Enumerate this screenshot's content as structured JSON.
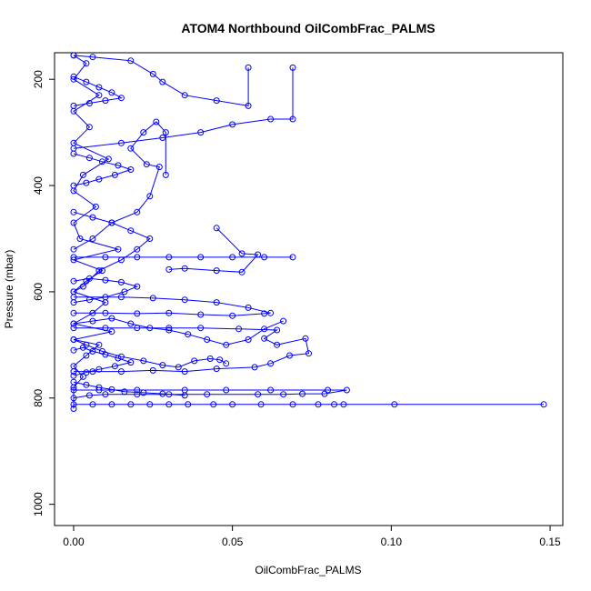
{
  "chart_data": {
    "type": "line",
    "title": "ATOM4 Northbound OilCombFrac_PALMS",
    "xlabel": "OilCombFrac_PALMS",
    "ylabel": "Pressure (mbar)",
    "xlim": [
      -0.006,
      0.154
    ],
    "ylim": [
      1040,
      150
    ],
    "y_reversed": true,
    "x_ticks": [
      0.0,
      0.05,
      0.1,
      0.15
    ],
    "x_tick_labels": [
      "0.00",
      "0.05",
      "0.10",
      "0.15"
    ],
    "y_ticks": [
      200,
      400,
      600,
      800,
      1000
    ],
    "y_tick_labels": [
      "200",
      "400",
      "600",
      "800",
      "1000"
    ],
    "grid": false,
    "color": "#0000ff",
    "marker": "open-circle",
    "series": [
      {
        "values": [
          [
            0.0,
            820
          ],
          [
            0.0,
            780
          ],
          [
            0.003,
            760
          ],
          [
            0.0,
            740
          ],
          [
            0.004,
            720
          ],
          [
            0.008,
            700
          ],
          [
            0.0,
            690
          ],
          [
            0.012,
            675
          ],
          [
            0.0,
            660
          ],
          [
            0.006,
            640
          ],
          [
            0.01,
            620
          ],
          [
            0.0,
            600
          ],
          [
            0.004,
            580
          ],
          [
            0.009,
            560
          ],
          [
            0.0,
            540
          ],
          [
            0.014,
            520
          ],
          [
            0.002,
            500
          ],
          [
            0.0,
            470
          ],
          [
            0.007,
            440
          ],
          [
            0.0,
            410
          ],
          [
            0.003,
            380
          ],
          [
            0.011,
            350
          ],
          [
            0.0,
            320
          ],
          [
            0.005,
            290
          ],
          [
            0.0,
            260
          ],
          [
            0.008,
            230
          ],
          [
            0.0,
            200
          ],
          [
            0.004,
            170
          ],
          [
            0.0,
            155
          ]
        ]
      },
      {
        "values": [
          [
            0.0,
            812
          ],
          [
            0.006,
            812
          ],
          [
            0.012,
            812
          ],
          [
            0.018,
            812
          ],
          [
            0.024,
            812
          ],
          [
            0.03,
            812
          ],
          [
            0.036,
            812
          ],
          [
            0.044,
            812
          ],
          [
            0.05,
            812
          ],
          [
            0.059,
            812
          ],
          [
            0.069,
            812
          ],
          [
            0.077,
            812
          ],
          [
            0.082,
            812
          ],
          [
            0.085,
            812
          ],
          [
            0.101,
            812
          ],
          [
            0.148,
            812
          ]
        ]
      },
      {
        "values": [
          [
            0.0,
            800
          ],
          [
            0.005,
            795
          ],
          [
            0.01,
            793
          ],
          [
            0.02,
            793
          ],
          [
            0.03,
            793
          ],
          [
            0.042,
            793
          ],
          [
            0.058,
            793
          ],
          [
            0.066,
            793
          ],
          [
            0.072,
            792
          ],
          [
            0.079,
            792
          ],
          [
            0.086,
            785
          ],
          [
            0.08,
            785
          ],
          [
            0.062,
            785
          ],
          [
            0.048,
            785
          ],
          [
            0.035,
            785
          ],
          [
            0.02,
            785
          ],
          [
            0.008,
            785
          ],
          [
            0.0,
            785
          ]
        ]
      },
      {
        "values": [
          [
            0.0,
            535
          ],
          [
            0.01,
            535
          ],
          [
            0.02,
            535
          ],
          [
            0.03,
            535
          ],
          [
            0.04,
            535
          ],
          [
            0.05,
            535
          ],
          [
            0.06,
            535
          ],
          [
            0.069,
            535
          ]
        ]
      },
      {
        "values": [
          [
            0.0,
            750
          ],
          [
            0.006,
            750
          ],
          [
            0.015,
            750
          ],
          [
            0.025,
            748
          ],
          [
            0.035,
            750
          ],
          [
            0.045,
            745
          ],
          [
            0.057,
            742
          ],
          [
            0.062,
            735
          ],
          [
            0.068,
            720
          ],
          [
            0.074,
            716
          ],
          [
            0.073,
            688
          ],
          [
            0.064,
            700
          ],
          [
            0.06,
            688
          ],
          [
            0.064,
            672
          ],
          [
            0.052,
            670
          ],
          [
            0.04,
            668
          ],
          [
            0.03,
            668
          ],
          [
            0.02,
            668
          ],
          [
            0.01,
            668
          ],
          [
            0.0,
            668
          ]
        ]
      },
      {
        "values": [
          [
            0.0,
            640
          ],
          [
            0.01,
            640
          ],
          [
            0.02,
            641
          ],
          [
            0.03,
            640
          ],
          [
            0.04,
            643
          ],
          [
            0.05,
            645
          ],
          [
            0.06,
            641
          ],
          [
            0.062,
            640
          ],
          [
            0.055,
            630
          ],
          [
            0.045,
            620
          ],
          [
            0.035,
            615
          ],
          [
            0.025,
            612
          ],
          [
            0.015,
            610
          ],
          [
            0.0,
            610
          ]
        ]
      },
      {
        "values": [
          [
            0.045,
            480
          ],
          [
            0.053,
            528
          ],
          [
            0.058,
            530
          ],
          [
            0.053,
            563
          ],
          [
            0.045,
            560
          ],
          [
            0.035,
            556
          ],
          [
            0.03,
            558
          ]
        ]
      },
      {
        "values": [
          [
            0.069,
            178
          ],
          [
            0.069,
            275
          ],
          [
            0.062,
            275
          ],
          [
            0.05,
            285
          ],
          [
            0.04,
            300
          ],
          [
            0.028,
            310
          ],
          [
            0.015,
            320
          ],
          [
            0.0,
            330
          ]
        ]
      },
      {
        "values": [
          [
            0.055,
            178
          ],
          [
            0.055,
            250
          ],
          [
            0.045,
            240
          ],
          [
            0.035,
            230
          ],
          [
            0.028,
            205
          ],
          [
            0.025,
            190
          ],
          [
            0.018,
            165
          ],
          [
            0.006,
            158
          ],
          [
            0.0,
            155
          ]
        ]
      },
      {
        "values": [
          [
            0.029,
            380
          ],
          [
            0.029,
            300
          ],
          [
            0.026,
            280
          ],
          [
            0.022,
            300
          ],
          [
            0.018,
            330
          ],
          [
            0.023,
            360
          ],
          [
            0.027,
            365
          ],
          [
            0.024,
            420
          ],
          [
            0.02,
            450
          ],
          [
            0.012,
            470
          ],
          [
            0.006,
            500
          ],
          [
            0.0,
            520
          ]
        ]
      },
      {
        "values": [
          [
            0.0,
            450
          ],
          [
            0.006,
            460
          ],
          [
            0.012,
            470
          ],
          [
            0.018,
            485
          ],
          [
            0.024,
            500
          ],
          [
            0.02,
            520
          ],
          [
            0.015,
            540
          ],
          [
            0.008,
            560
          ],
          [
            0.003,
            590
          ],
          [
            0.0,
            600
          ]
        ]
      },
      {
        "values": [
          [
            0.0,
            690
          ],
          [
            0.004,
            700
          ],
          [
            0.009,
            712
          ],
          [
            0.015,
            722
          ],
          [
            0.022,
            730
          ],
          [
            0.028,
            738
          ],
          [
            0.033,
            742
          ],
          [
            0.038,
            730
          ],
          [
            0.043,
            726
          ],
          [
            0.046,
            728
          ],
          [
            0.048,
            735
          ]
        ]
      },
      {
        "values": [
          [
            0.0,
            660
          ],
          [
            0.006,
            655
          ],
          [
            0.012,
            650
          ],
          [
            0.018,
            660
          ],
          [
            0.024,
            668
          ],
          [
            0.03,
            672
          ],
          [
            0.036,
            680
          ],
          [
            0.042,
            690
          ],
          [
            0.048,
            700
          ],
          [
            0.055,
            690
          ],
          [
            0.06,
            670
          ],
          [
            0.066,
            655
          ]
        ]
      },
      {
        "values": [
          [
            0.0,
            580
          ],
          [
            0.005,
            575
          ],
          [
            0.01,
            578
          ],
          [
            0.015,
            582
          ],
          [
            0.02,
            590
          ],
          [
            0.016,
            600
          ],
          [
            0.01,
            610
          ],
          [
            0.005,
            615
          ],
          [
            0.0,
            620
          ]
        ]
      },
      {
        "values": [
          [
            0.0,
            400
          ],
          [
            0.004,
            395
          ],
          [
            0.008,
            388
          ],
          [
            0.013,
            380
          ],
          [
            0.018,
            370
          ],
          [
            0.014,
            362
          ],
          [
            0.009,
            355
          ],
          [
            0.005,
            348
          ],
          [
            0.0,
            340
          ]
        ]
      },
      {
        "values": [
          [
            0.0,
            250
          ],
          [
            0.005,
            245
          ],
          [
            0.01,
            240
          ],
          [
            0.015,
            235
          ],
          [
            0.012,
            225
          ],
          [
            0.008,
            215
          ],
          [
            0.004,
            205
          ],
          [
            0.0,
            195
          ]
        ]
      },
      {
        "values": [
          [
            0.0,
            710
          ],
          [
            0.003,
            705
          ],
          [
            0.006,
            712
          ],
          [
            0.01,
            718
          ],
          [
            0.014,
            725
          ],
          [
            0.018,
            733
          ],
          [
            0.013,
            740
          ],
          [
            0.008,
            746
          ],
          [
            0.004,
            752
          ],
          [
            0.0,
            758
          ]
        ]
      },
      {
        "values": [
          [
            0.0,
            770
          ],
          [
            0.004,
            775
          ],
          [
            0.008,
            780
          ],
          [
            0.012,
            784
          ],
          [
            0.016,
            788
          ],
          [
            0.022,
            790
          ],
          [
            0.028,
            792
          ],
          [
            0.035,
            795
          ]
        ]
      }
    ]
  }
}
